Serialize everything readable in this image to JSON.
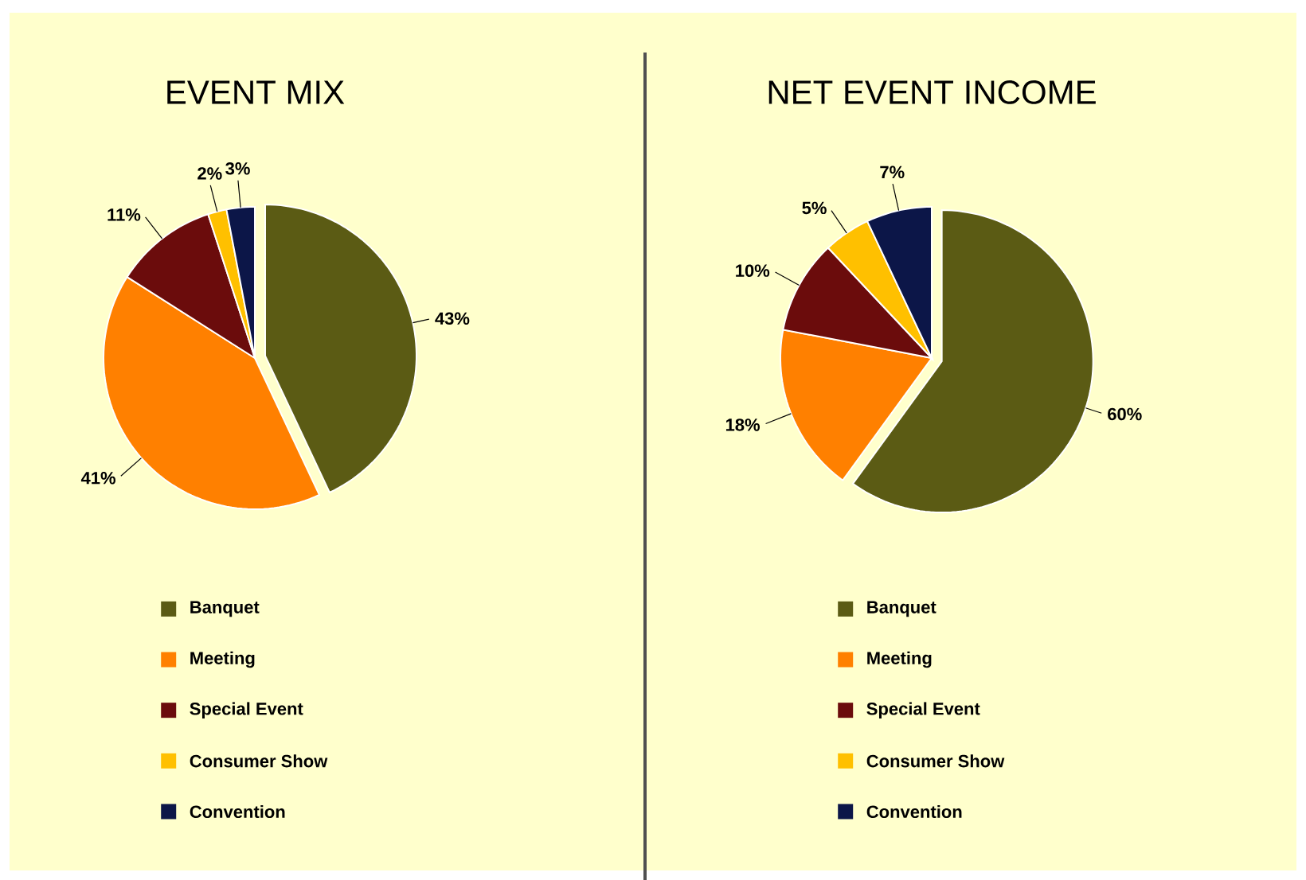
{
  "chart_data": [
    {
      "type": "pie",
      "title": "EVENT MIX",
      "categories": [
        "Banquet",
        "Meeting",
        "Special Event",
        "Consumer Show",
        "Convention"
      ],
      "values": [
        43,
        41,
        11,
        2,
        3
      ],
      "value_labels": [
        "43%",
        "41%",
        "11%",
        "2%",
        "3%"
      ],
      "colors": [
        "#5b5b14",
        "#ff8000",
        "#6b0c0c",
        "#ffc000",
        "#0c1648"
      ],
      "legend": "bottom"
    },
    {
      "type": "pie",
      "title": "NET EVENT INCOME",
      "categories": [
        "Banquet",
        "Meeting",
        "Special Event",
        "Consumer Show",
        "Convention"
      ],
      "values": [
        60,
        18,
        10,
        5,
        7
      ],
      "value_labels": [
        "60%",
        "18%",
        "10%",
        "5%",
        "7%"
      ],
      "colors": [
        "#5b5b14",
        "#ff8000",
        "#6b0c0c",
        "#ffc000",
        "#0c1648"
      ],
      "legend": "bottom"
    }
  ]
}
